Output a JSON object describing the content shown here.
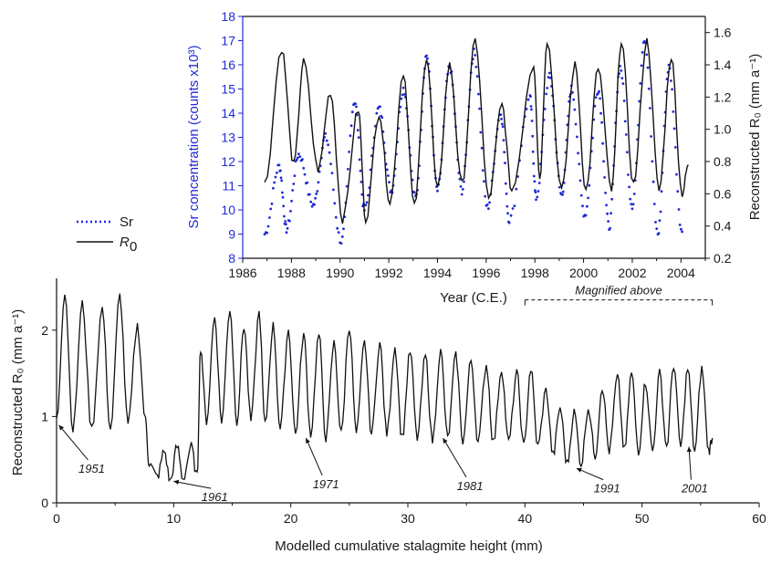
{
  "chart_data": [
    {
      "type": "line",
      "xlabel": "Year (C.E.)",
      "ylabel_left": "Sr concentration (counts x10³)",
      "ylabel_right": "Reconstructed R₀ (mm a⁻¹)",
      "xlim": [
        1986,
        2005
      ],
      "ylim_left": [
        8,
        18
      ],
      "ylim_right": [
        0.2,
        1.7
      ],
      "x_ticks": [
        "1986",
        "1988",
        "1990",
        "1992",
        "1994",
        "1996",
        "1998",
        "2000",
        "2002",
        "2004"
      ],
      "y_ticks_left": [
        "8",
        "9",
        "10",
        "11",
        "12",
        "13",
        "14",
        "15",
        "16",
        "17",
        "18"
      ],
      "y_ticks_right": [
        "0.2",
        "0.4",
        "0.6",
        "0.8",
        "1.0",
        "1.2",
        "1.4",
        "1.6"
      ],
      "legend": {
        "placement": "left",
        "entries": [
          {
            "label": "Sr",
            "style": "dotted",
            "color": "#1f2bd6"
          },
          {
            "label": "R",
            "subscript": "0",
            "style": "solid",
            "color": "#000000"
          }
        ]
      },
      "series": [
        {
          "name": "Sr",
          "axis": "left",
          "color": "#1f2bd6",
          "peaks": [
            [
              1986.9,
              9.0
            ],
            [
              1987.5,
              11.8
            ],
            [
              1987.8,
              9.2
            ],
            [
              1988.3,
              12.3
            ],
            [
              1988.9,
              10.2
            ],
            [
              1989.4,
              13.0
            ],
            [
              1990.05,
              8.7
            ],
            [
              1990.6,
              14.5
            ],
            [
              1991.0,
              10.0
            ],
            [
              1991.6,
              14.2
            ],
            [
              1992.1,
              10.8
            ],
            [
              1992.6,
              15.0
            ],
            [
              1993.1,
              10.5
            ],
            [
              1993.55,
              16.4
            ],
            [
              1994.0,
              10.8
            ],
            [
              1994.5,
              15.9
            ],
            [
              1995.0,
              10.8
            ],
            [
              1995.5,
              16.5
            ],
            [
              1996.05,
              10.1
            ],
            [
              1996.6,
              14.0
            ],
            [
              1996.95,
              9.6
            ],
            [
              1997.8,
              14.6
            ],
            [
              1998.05,
              10.5
            ],
            [
              1998.6,
              15.5
            ],
            [
              1999.1,
              10.6
            ],
            [
              1999.5,
              15.0
            ],
            [
              2000.05,
              9.8
            ],
            [
              2000.6,
              15.0
            ],
            [
              2001.05,
              9.3
            ],
            [
              2001.5,
              15.9
            ],
            [
              2002.0,
              10.2
            ],
            [
              2002.5,
              17.1
            ],
            [
              2003.05,
              9.0
            ],
            [
              2003.5,
              15.9
            ],
            [
              2004.05,
              9.1
            ]
          ]
        },
        {
          "name": "R0",
          "axis": "right",
          "color": "#000000",
          "peaks": [
            [
              1986.9,
              0.66
            ],
            [
              1987.6,
              1.5
            ],
            [
              1988.1,
              0.78
            ],
            [
              1988.5,
              1.42
            ],
            [
              1989.1,
              0.75
            ],
            [
              1989.6,
              1.23
            ],
            [
              1990.1,
              0.44
            ],
            [
              1990.75,
              1.12
            ],
            [
              1991.05,
              0.44
            ],
            [
              1991.6,
              1.1
            ],
            [
              1992.05,
              0.55
            ],
            [
              1992.6,
              1.35
            ],
            [
              1993.05,
              0.52
            ],
            [
              1993.55,
              1.45
            ],
            [
              1994.0,
              0.62
            ],
            [
              1994.5,
              1.4
            ],
            [
              1995.0,
              0.66
            ],
            [
              1995.55,
              1.55
            ],
            [
              1996.1,
              0.57
            ],
            [
              1996.65,
              1.15
            ],
            [
              1997.05,
              0.62
            ],
            [
              1997.95,
              1.4
            ],
            [
              1998.2,
              0.7
            ],
            [
              1998.5,
              1.55
            ],
            [
              1999.1,
              0.62
            ],
            [
              1999.65,
              1.4
            ],
            [
              2000.1,
              0.62
            ],
            [
              2000.6,
              1.38
            ],
            [
              2001.15,
              0.62
            ],
            [
              2001.55,
              1.55
            ],
            [
              2002.05,
              0.66
            ],
            [
              2002.6,
              1.55
            ],
            [
              2003.1,
              0.62
            ],
            [
              2003.6,
              1.45
            ],
            [
              2004.05,
              0.6
            ],
            [
              2004.3,
              0.78
            ]
          ]
        }
      ]
    },
    {
      "type": "line",
      "xlabel": "Modelled cumulative stalagmite height (mm)",
      "ylabel": "Reconstructed R₀ (mm a⁻¹)",
      "xlim": [
        0,
        60
      ],
      "ylim": [
        0,
        2.6
      ],
      "x_ticks": [
        "0",
        "10",
        "20",
        "30",
        "40",
        "50",
        "60"
      ],
      "y_ticks": [
        "0",
        "1",
        "2"
      ],
      "series": [
        {
          "name": "R0",
          "color": "#000000",
          "peaks": [
            [
              0,
              0.95
            ],
            [
              0.7,
              2.45
            ],
            [
              1.4,
              0.85
            ],
            [
              2.2,
              2.3
            ],
            [
              3.0,
              0.85
            ],
            [
              3.9,
              2.25
            ],
            [
              4.6,
              0.85
            ],
            [
              5.4,
              2.4
            ],
            [
              6.1,
              0.9
            ],
            [
              6.9,
              2.05
            ],
            [
              7.6,
              0.95
            ],
            [
              7.9,
              0.45
            ],
            [
              8.6,
              0.3
            ],
            [
              9.2,
              0.6
            ],
            [
              9.7,
              0.25
            ],
            [
              10.3,
              0.65
            ],
            [
              10.8,
              0.28
            ],
            [
              11.5,
              0.65
            ],
            [
              12.0,
              0.3
            ],
            [
              12.3,
              1.8
            ],
            [
              12.8,
              0.95
            ],
            [
              13.5,
              2.15
            ],
            [
              14.1,
              0.95
            ],
            [
              14.8,
              2.25
            ],
            [
              15.4,
              0.95
            ],
            [
              16.0,
              2.05
            ],
            [
              16.6,
              0.95
            ],
            [
              17.3,
              2.2
            ],
            [
              17.8,
              0.9
            ],
            [
              18.5,
              2.05
            ],
            [
              19.1,
              0.85
            ],
            [
              19.8,
              2.0
            ],
            [
              20.4,
              0.8
            ],
            [
              21.1,
              1.95
            ],
            [
              21.7,
              0.8
            ],
            [
              22.4,
              1.95
            ],
            [
              23.0,
              0.75
            ],
            [
              23.7,
              1.85
            ],
            [
              24.3,
              0.8
            ],
            [
              25.0,
              2.05
            ],
            [
              25.6,
              0.8
            ],
            [
              26.3,
              1.85
            ],
            [
              26.9,
              0.8
            ],
            [
              27.6,
              1.85
            ],
            [
              28.2,
              0.8
            ],
            [
              28.9,
              1.8
            ],
            [
              29.5,
              0.75
            ],
            [
              30.2,
              1.75
            ],
            [
              30.8,
              0.75
            ],
            [
              31.5,
              1.7
            ],
            [
              32.1,
              0.72
            ],
            [
              32.8,
              1.75
            ],
            [
              33.4,
              0.75
            ],
            [
              34.1,
              1.7
            ],
            [
              34.7,
              0.72
            ],
            [
              35.4,
              1.65
            ],
            [
              36.0,
              0.7
            ],
            [
              36.7,
              1.6
            ],
            [
              37.3,
              0.7
            ],
            [
              38.0,
              1.55
            ],
            [
              38.6,
              0.7
            ],
            [
              39.3,
              1.5
            ],
            [
              39.9,
              0.65
            ],
            [
              40.5,
              1.55
            ],
            [
              41.1,
              0.65
            ],
            [
              41.8,
              1.3
            ],
            [
              42.4,
              0.55
            ],
            [
              43.0,
              1.1
            ],
            [
              43.6,
              0.45
            ],
            [
              44.2,
              1.05
            ],
            [
              44.8,
              0.45
            ],
            [
              45.4,
              1.1
            ],
            [
              46.0,
              0.55
            ],
            [
              46.6,
              1.35
            ],
            [
              47.2,
              0.6
            ],
            [
              47.9,
              1.45
            ],
            [
              48.5,
              0.6
            ],
            [
              49.1,
              1.5
            ],
            [
              49.7,
              0.6
            ],
            [
              50.3,
              1.4
            ],
            [
              50.9,
              0.6
            ],
            [
              51.5,
              1.5
            ],
            [
              52.1,
              0.65
            ],
            [
              52.7,
              1.6
            ],
            [
              53.3,
              0.65
            ],
            [
              53.9,
              1.55
            ],
            [
              54.5,
              0.6
            ],
            [
              55.1,
              1.55
            ],
            [
              55.7,
              0.6
            ],
            [
              56.0,
              0.75
            ]
          ]
        }
      ],
      "bracket": {
        "label": "Magnified above",
        "x_start": 40,
        "x_end": 56,
        "y": 2.35
      },
      "annotations": [
        {
          "text": "1951",
          "x": 0.2,
          "y": 0.9,
          "label_x": 3.0,
          "label_y": 0.35
        },
        {
          "text": "1961",
          "x": 10.0,
          "y": 0.25,
          "label_x": 13.5,
          "label_y": 0.02
        },
        {
          "text": "1971",
          "x": 21.3,
          "y": 0.75,
          "label_x": 23.0,
          "label_y": 0.17
        },
        {
          "text": "1981",
          "x": 33.0,
          "y": 0.75,
          "label_x": 35.3,
          "label_y": 0.15
        },
        {
          "text": "1991",
          "x": 44.4,
          "y": 0.4,
          "label_x": 47.0,
          "label_y": 0.12
        },
        {
          "text": "2001",
          "x": 54.0,
          "y": 0.65,
          "label_x": 54.5,
          "label_y": 0.12
        }
      ]
    }
  ]
}
